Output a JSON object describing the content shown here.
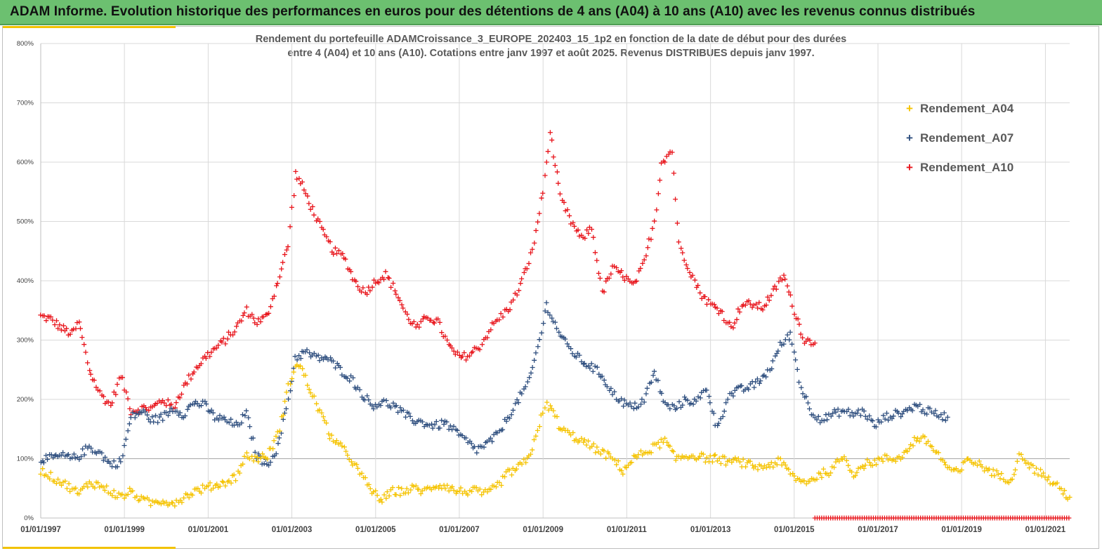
{
  "banner": {
    "title": "ADAM Informe. Evolution historique des performances en euros pour des détentions de 4 ans (A04) à 10 ans (A10) avec les revenus connus distribués"
  },
  "chart_title": {
    "line1": "Rendement du portefeuille ADAMCroissance_3_EUROPE_202403_15_1p2  en fonction de la date de début pour des durées",
    "line2": "entre 4 (A04) et 10 ans (A10). Cotations entre janv 1997 et août 2025. Revenus DISTRIBUES depuis janv 1997."
  },
  "legend": [
    {
      "label": "Rendement_A04",
      "color": "#f5c300"
    },
    {
      "label": "Rendement_A07",
      "color": "#2f4f7f"
    },
    {
      "label": "Rendement_A10",
      "color": "#e8141b"
    }
  ],
  "chart_data": {
    "type": "scatter",
    "marker": "+",
    "y_ticks": [
      "0%",
      "100%",
      "200%",
      "300%",
      "400%",
      "500%",
      "600%",
      "700%",
      "800%"
    ],
    "x_ticks": [
      "01/01/1997",
      "01/01/1999",
      "01/01/2001",
      "01/01/2003",
      "01/01/2005",
      "01/01/2007",
      "01/01/2009",
      "01/01/2011",
      "01/01/2013",
      "01/01/2015",
      "01/01/2017",
      "01/01/2019",
      "01/01/2021"
    ],
    "xlim": [
      "1997-01-01",
      "2021-08-01"
    ],
    "ylim": [
      0,
      8
    ],
    "grid": true,
    "legend_position": "top-right",
    "series": [
      {
        "name": "Rendement_A04",
        "color": "#f5c300",
        "points": [
          [
            "1997-01-01",
            0.8
          ],
          [
            "1997-04-01",
            0.7
          ],
          [
            "1997-07-01",
            0.6
          ],
          [
            "1997-10-01",
            0.5
          ],
          [
            "1997-12-01",
            0.4
          ],
          [
            "1998-03-01",
            0.6
          ],
          [
            "1998-06-01",
            0.55
          ],
          [
            "1998-09-01",
            0.45
          ],
          [
            "1998-12-01",
            0.35
          ],
          [
            "1999-03-01",
            0.45
          ],
          [
            "1999-06-01",
            0.3
          ],
          [
            "1999-09-01",
            0.25
          ],
          [
            "1999-12-01",
            0.3
          ],
          [
            "2000-03-01",
            0.25
          ],
          [
            "2000-06-01",
            0.35
          ],
          [
            "2000-09-01",
            0.45
          ],
          [
            "2000-12-01",
            0.5
          ],
          [
            "2001-03-01",
            0.55
          ],
          [
            "2001-06-01",
            0.6
          ],
          [
            "2001-09-01",
            0.7
          ],
          [
            "2001-12-01",
            1.05
          ],
          [
            "2002-03-01",
            1.0
          ],
          [
            "2002-06-01",
            1.05
          ],
          [
            "2002-09-01",
            1.4
          ],
          [
            "2002-12-01",
            2.2
          ],
          [
            "2003-02-01",
            2.6
          ],
          [
            "2003-04-01",
            2.5
          ],
          [
            "2003-06-01",
            2.2
          ],
          [
            "2003-09-01",
            1.8
          ],
          [
            "2003-12-01",
            1.4
          ],
          [
            "2004-03-01",
            1.2
          ],
          [
            "2004-06-01",
            1.0
          ],
          [
            "2004-09-01",
            0.7
          ],
          [
            "2004-12-01",
            0.45
          ],
          [
            "2005-03-01",
            0.3
          ],
          [
            "2005-06-01",
            0.45
          ],
          [
            "2005-09-01",
            0.45
          ],
          [
            "2005-12-01",
            0.5
          ],
          [
            "2006-03-01",
            0.45
          ],
          [
            "2006-06-01",
            0.55
          ],
          [
            "2006-09-01",
            0.55
          ],
          [
            "2006-12-01",
            0.45
          ],
          [
            "2007-03-01",
            0.45
          ],
          [
            "2007-06-01",
            0.45
          ],
          [
            "2007-09-01",
            0.4
          ],
          [
            "2007-12-01",
            0.55
          ],
          [
            "2008-03-01",
            0.75
          ],
          [
            "2008-06-01",
            0.85
          ],
          [
            "2008-09-01",
            1.0
          ],
          [
            "2008-12-01",
            1.6
          ],
          [
            "2009-02-01",
            1.9
          ],
          [
            "2009-04-01",
            1.8
          ],
          [
            "2009-06-01",
            1.5
          ],
          [
            "2009-09-01",
            1.4
          ],
          [
            "2009-12-01",
            1.3
          ],
          [
            "2010-03-01",
            1.2
          ],
          [
            "2010-06-01",
            1.1
          ],
          [
            "2010-09-01",
            1.0
          ],
          [
            "2010-12-01",
            0.8
          ],
          [
            "2011-03-01",
            1.0
          ],
          [
            "2011-06-01",
            1.1
          ],
          [
            "2011-09-01",
            1.2
          ],
          [
            "2011-12-01",
            1.3
          ],
          [
            "2012-03-01",
            1.0
          ],
          [
            "2012-06-01",
            1.05
          ],
          [
            "2012-09-01",
            1.05
          ],
          [
            "2012-12-01",
            1.0
          ],
          [
            "2013-03-01",
            1.0
          ],
          [
            "2013-06-01",
            0.95
          ],
          [
            "2013-09-01",
            0.95
          ],
          [
            "2013-12-01",
            0.9
          ],
          [
            "2014-03-01",
            0.85
          ],
          [
            "2014-06-01",
            0.9
          ],
          [
            "2014-09-01",
            0.95
          ],
          [
            "2014-12-01",
            0.75
          ],
          [
            "2015-03-01",
            0.6
          ],
          [
            "2015-06-01",
            0.65
          ],
          [
            "2015-09-01",
            0.75
          ],
          [
            "2015-12-01",
            0.8
          ],
          [
            "2016-03-01",
            1.05
          ],
          [
            "2016-06-01",
            0.75
          ],
          [
            "2016-09-01",
            0.9
          ],
          [
            "2016-12-01",
            0.95
          ],
          [
            "2017-03-01",
            1.0
          ],
          [
            "2017-06-01",
            1.0
          ],
          [
            "2017-09-01",
            1.1
          ],
          [
            "2017-12-01",
            1.35
          ],
          [
            "2018-03-01",
            1.3
          ],
          [
            "2018-06-01",
            1.1
          ],
          [
            "2018-09-01",
            0.85
          ],
          [
            "2018-12-01",
            0.75
          ],
          [
            "2019-03-01",
            1.0
          ],
          [
            "2019-06-01",
            0.9
          ],
          [
            "2019-09-01",
            0.8
          ],
          [
            "2019-12-01",
            0.7
          ],
          [
            "2020-03-01",
            0.65
          ],
          [
            "2020-06-01",
            1.1
          ],
          [
            "2020-09-01",
            0.85
          ],
          [
            "2020-12-01",
            0.75
          ],
          [
            "2021-03-01",
            0.6
          ],
          [
            "2021-06-01",
            0.45
          ],
          [
            "2021-08-01",
            0.35
          ]
        ]
      },
      {
        "name": "Rendement_A07",
        "color": "#2f4f7f",
        "points": [
          [
            "1997-01-01",
            1.0
          ],
          [
            "1997-04-01",
            1.0
          ],
          [
            "1997-07-01",
            1.05
          ],
          [
            "1997-10-01",
            1.0
          ],
          [
            "1997-12-01",
            1.05
          ],
          [
            "1998-03-01",
            1.2
          ],
          [
            "1998-06-01",
            1.1
          ],
          [
            "1998-09-01",
            0.9
          ],
          [
            "1998-12-01",
            0.95
          ],
          [
            "1999-03-01",
            1.7
          ],
          [
            "1999-06-01",
            1.8
          ],
          [
            "1999-09-01",
            1.65
          ],
          [
            "1999-12-01",
            1.7
          ],
          [
            "2000-03-01",
            1.85
          ],
          [
            "2000-06-01",
            1.75
          ],
          [
            "2000-09-01",
            1.95
          ],
          [
            "2000-12-01",
            1.9
          ],
          [
            "2001-03-01",
            1.7
          ],
          [
            "2001-06-01",
            1.65
          ],
          [
            "2001-09-01",
            1.55
          ],
          [
            "2001-12-01",
            1.75
          ],
          [
            "2002-03-01",
            1.05
          ],
          [
            "2002-06-01",
            0.9
          ],
          [
            "2002-09-01",
            1.2
          ],
          [
            "2002-12-01",
            2.0
          ],
          [
            "2003-02-01",
            2.7
          ],
          [
            "2003-05-01",
            2.8
          ],
          [
            "2003-08-01",
            2.7
          ],
          [
            "2003-11-01",
            2.7
          ],
          [
            "2004-03-01",
            2.5
          ],
          [
            "2004-06-01",
            2.35
          ],
          [
            "2004-09-01",
            2.1
          ],
          [
            "2004-12-01",
            1.9
          ],
          [
            "2005-03-01",
            1.95
          ],
          [
            "2005-06-01",
            1.9
          ],
          [
            "2005-09-01",
            1.75
          ],
          [
            "2005-12-01",
            1.65
          ],
          [
            "2006-03-01",
            1.6
          ],
          [
            "2006-06-01",
            1.55
          ],
          [
            "2006-09-01",
            1.6
          ],
          [
            "2006-12-01",
            1.45
          ],
          [
            "2007-03-01",
            1.3
          ],
          [
            "2007-06-01",
            1.15
          ],
          [
            "2007-09-01",
            1.25
          ],
          [
            "2007-12-01",
            1.4
          ],
          [
            "2008-03-01",
            1.7
          ],
          [
            "2008-06-01",
            2.0
          ],
          [
            "2008-09-01",
            2.3
          ],
          [
            "2008-12-01",
            3.0
          ],
          [
            "2009-02-01",
            3.6
          ],
          [
            "2009-05-01",
            3.2
          ],
          [
            "2009-08-01",
            2.9
          ],
          [
            "2009-12-01",
            2.65
          ],
          [
            "2010-03-01",
            2.55
          ],
          [
            "2010-06-01",
            2.4
          ],
          [
            "2010-09-01",
            2.1
          ],
          [
            "2010-12-01",
            1.95
          ],
          [
            "2011-03-01",
            1.85
          ],
          [
            "2011-06-01",
            2.0
          ],
          [
            "2011-09-01",
            2.45
          ],
          [
            "2011-12-01",
            1.9
          ],
          [
            "2012-03-01",
            1.85
          ],
          [
            "2012-06-01",
            2.0
          ],
          [
            "2012-09-01",
            1.95
          ],
          [
            "2012-12-01",
            2.2
          ],
          [
            "2013-03-01",
            1.5
          ],
          [
            "2013-06-01",
            2.05
          ],
          [
            "2013-09-01",
            2.15
          ],
          [
            "2013-12-01",
            2.2
          ],
          [
            "2014-03-01",
            2.3
          ],
          [
            "2014-06-01",
            2.5
          ],
          [
            "2014-09-01",
            2.9
          ],
          [
            "2014-12-01",
            3.1
          ],
          [
            "2015-03-01",
            2.2
          ],
          [
            "2015-06-01",
            1.8
          ],
          [
            "2015-09-01",
            1.65
          ],
          [
            "2015-12-01",
            1.75
          ],
          [
            "2016-03-01",
            1.8
          ],
          [
            "2016-06-01",
            1.75
          ],
          [
            "2016-09-01",
            1.8
          ],
          [
            "2016-12-01",
            1.55
          ],
          [
            "2017-03-01",
            1.7
          ],
          [
            "2017-06-01",
            1.75
          ],
          [
            "2017-09-01",
            1.8
          ],
          [
            "2017-12-01",
            1.9
          ],
          [
            "2018-03-01",
            1.8
          ],
          [
            "2018-06-01",
            1.75
          ],
          [
            "2018-09-01",
            1.7
          ]
        ]
      },
      {
        "name": "Rendement_A10",
        "color": "#e8141b",
        "points": [
          [
            "1997-01-01",
            3.4
          ],
          [
            "1997-04-01",
            3.35
          ],
          [
            "1997-07-01",
            3.2
          ],
          [
            "1997-10-01",
            3.1
          ],
          [
            "1997-12-01",
            3.3
          ],
          [
            "1998-03-01",
            2.5
          ],
          [
            "1998-06-01",
            2.1
          ],
          [
            "1998-09-01",
            1.9
          ],
          [
            "1998-12-01",
            2.4
          ],
          [
            "1999-03-01",
            1.8
          ],
          [
            "1999-06-01",
            1.85
          ],
          [
            "1999-09-01",
            1.85
          ],
          [
            "1999-12-01",
            2.0
          ],
          [
            "2000-03-01",
            1.85
          ],
          [
            "2000-06-01",
            2.2
          ],
          [
            "2000-09-01",
            2.5
          ],
          [
            "2000-12-01",
            2.7
          ],
          [
            "2001-03-01",
            2.85
          ],
          [
            "2001-06-01",
            3.0
          ],
          [
            "2001-09-01",
            3.2
          ],
          [
            "2001-12-01",
            3.5
          ],
          [
            "2002-03-01",
            3.3
          ],
          [
            "2002-06-01",
            3.4
          ],
          [
            "2002-09-01",
            4.0
          ],
          [
            "2002-12-01",
            4.6
          ],
          [
            "2003-02-01",
            5.8
          ],
          [
            "2003-04-01",
            5.6
          ],
          [
            "2003-07-01",
            5.2
          ],
          [
            "2003-10-01",
            4.8
          ],
          [
            "2004-01-01",
            4.5
          ],
          [
            "2004-04-01",
            4.4
          ],
          [
            "2004-07-01",
            4.0
          ],
          [
            "2004-10-01",
            3.8
          ],
          [
            "2005-01-01",
            4.0
          ],
          [
            "2005-04-01",
            4.1
          ],
          [
            "2005-07-01",
            3.8
          ],
          [
            "2005-10-01",
            3.4
          ],
          [
            "2006-01-01",
            3.2
          ],
          [
            "2006-04-01",
            3.4
          ],
          [
            "2006-07-01",
            3.3
          ],
          [
            "2006-10-01",
            2.9
          ],
          [
            "2007-01-01",
            2.7
          ],
          [
            "2007-04-01",
            2.75
          ],
          [
            "2007-07-01",
            2.9
          ],
          [
            "2007-10-01",
            3.2
          ],
          [
            "2008-01-01",
            3.4
          ],
          [
            "2008-04-01",
            3.6
          ],
          [
            "2008-07-01",
            4.0
          ],
          [
            "2008-10-01",
            4.5
          ],
          [
            "2009-01-01",
            5.5
          ],
          [
            "2009-03-01",
            6.5
          ],
          [
            "2009-06-01",
            5.4
          ],
          [
            "2009-09-01",
            5.0
          ],
          [
            "2009-12-01",
            4.7
          ],
          [
            "2010-03-01",
            4.9
          ],
          [
            "2010-06-01",
            3.8
          ],
          [
            "2010-09-01",
            4.2
          ],
          [
            "2010-12-01",
            4.1
          ],
          [
            "2011-03-01",
            3.9
          ],
          [
            "2011-06-01",
            4.3
          ],
          [
            "2011-09-01",
            5.0
          ],
          [
            "2011-11-01",
            6.0
          ],
          [
            "2012-02-01",
            6.2
          ],
          [
            "2012-04-01",
            4.6
          ],
          [
            "2012-07-01",
            4.2
          ],
          [
            "2012-10-01",
            3.8
          ],
          [
            "2013-01-01",
            3.6
          ],
          [
            "2013-04-01",
            3.5
          ],
          [
            "2013-07-01",
            3.2
          ],
          [
            "2013-10-01",
            3.6
          ],
          [
            "2014-01-01",
            3.6
          ],
          [
            "2014-04-01",
            3.55
          ],
          [
            "2014-07-01",
            3.8
          ],
          [
            "2014-10-01",
            4.1
          ],
          [
            "2015-01-01",
            3.5
          ],
          [
            "2015-04-01",
            3.0
          ],
          [
            "2015-07-01",
            2.95
          ]
        ]
      },
      {
        "name": "",
        "color": "#e8141b",
        "baseline": true,
        "x_range": [
          "2015-07-01",
          "2021-08-01"
        ],
        "value": 0
      }
    ]
  }
}
